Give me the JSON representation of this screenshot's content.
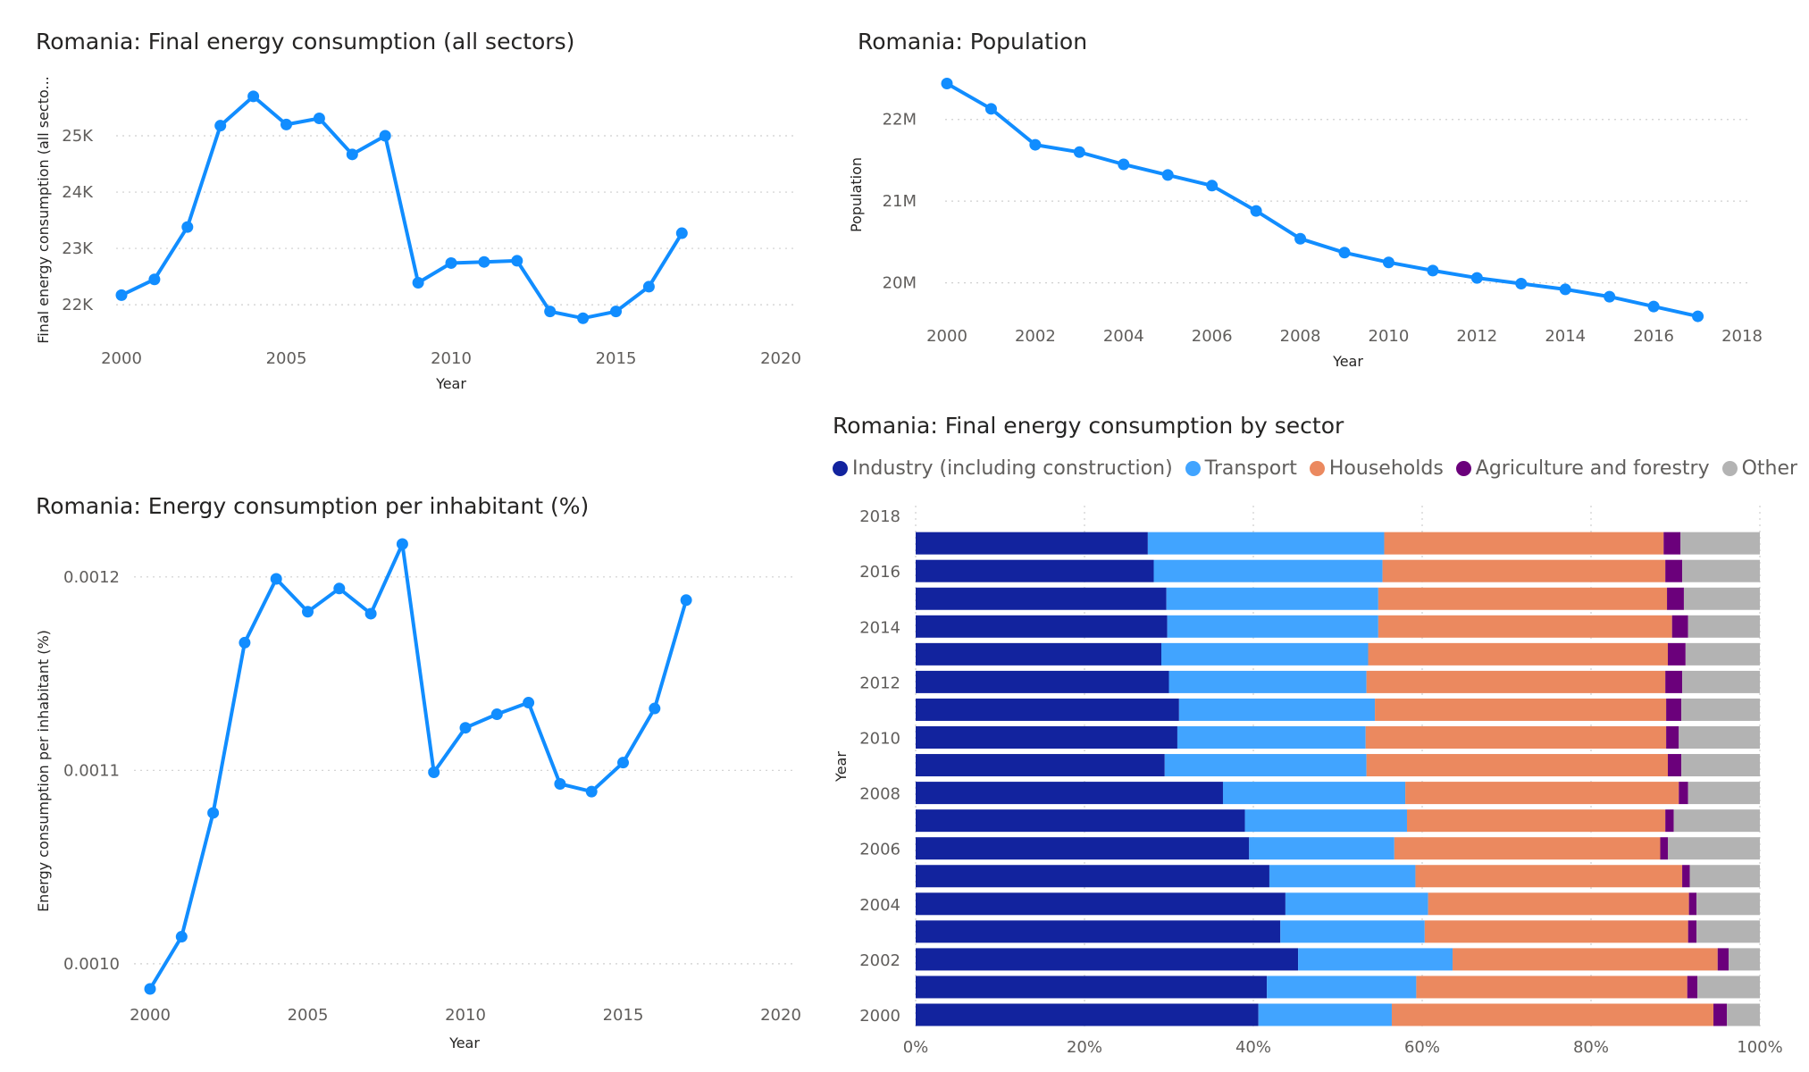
{
  "chart_data": [
    {
      "id": "chart1",
      "type": "line",
      "title": "Romania: Final energy consumption (all sectors)",
      "xlabel": "Year",
      "ylabel": "Final energy consumption (all secto...",
      "x": [
        2000,
        2001,
        2002,
        2003,
        2004,
        2005,
        2006,
        2007,
        2008,
        2009,
        2010,
        2011,
        2012,
        2013,
        2014,
        2015,
        2016,
        2017
      ],
      "values": [
        22170,
        22450,
        23380,
        25180,
        25700,
        25200,
        25310,
        24670,
        25000,
        22390,
        22740,
        22760,
        22780,
        21880,
        21760,
        21880,
        22320,
        23270
      ],
      "xlim": [
        2000,
        2020
      ],
      "xticks": [
        2000,
        2005,
        2010,
        2015,
        2020
      ],
      "ylim": [
        21700,
        26000
      ],
      "yticks": [
        22000,
        23000,
        24000,
        25000
      ],
      "ytick_labels": [
        "22K",
        "23K",
        "24K",
        "25K"
      ],
      "grid": true
    },
    {
      "id": "chart2",
      "type": "line",
      "title": "Romania: Population",
      "xlabel": "Year",
      "ylabel": "Population",
      "x": [
        2000,
        2001,
        2002,
        2003,
        2004,
        2005,
        2006,
        2007,
        2008,
        2009,
        2010,
        2011,
        2012,
        2013,
        2014,
        2015,
        2016,
        2017
      ],
      "values": [
        22440000,
        22130000,
        21690000,
        21600000,
        21450000,
        21320000,
        21190000,
        20880000,
        20540000,
        20370000,
        20250000,
        20150000,
        20060000,
        19990000,
        19920000,
        19830000,
        19710000,
        19590000
      ],
      "xlim": [
        2000,
        2018
      ],
      "xticks": [
        2000,
        2002,
        2004,
        2006,
        2008,
        2010,
        2012,
        2014,
        2016,
        2018
      ],
      "ylim": [
        19580000,
        22500000
      ],
      "yticks": [
        20000000,
        21000000,
        22000000
      ],
      "ytick_labels": [
        "20M",
        "21M",
        "22M"
      ],
      "grid": true
    },
    {
      "id": "chart3",
      "type": "line",
      "title": "Romania: Energy consumption per inhabitant (%)",
      "xlabel": "Year",
      "ylabel": "Energy consumption per inhabitant (%)",
      "x": [
        2000,
        2001,
        2002,
        2003,
        2004,
        2005,
        2006,
        2007,
        2008,
        2009,
        2010,
        2011,
        2012,
        2013,
        2014,
        2015,
        2016,
        2017
      ],
      "values": [
        0.000987,
        0.001014,
        0.001078,
        0.001166,
        0.001199,
        0.001182,
        0.001194,
        0.001181,
        0.001217,
        0.001099,
        0.001122,
        0.001129,
        0.001135,
        0.001093,
        0.001089,
        0.001104,
        0.001132,
        0.001188
      ],
      "xlim": [
        2000,
        2020
      ],
      "xticks": [
        2000,
        2005,
        2010,
        2015,
        2020
      ],
      "ylim": [
        0.000987,
        0.001217
      ],
      "yticks": [
        0.001,
        0.0011,
        0.0012
      ],
      "ytick_labels": [
        "0.0010",
        "0.0011",
        "0.0012"
      ],
      "grid": true
    },
    {
      "id": "chart4",
      "type": "bar",
      "orientation": "horizontal",
      "stacked": "100%",
      "title": "Romania: Final energy consumption by sector",
      "xlabel": "",
      "ylabel": "Year",
      "categories": [
        2000,
        2001,
        2002,
        2003,
        2004,
        2005,
        2006,
        2007,
        2008,
        2009,
        2010,
        2011,
        2012,
        2013,
        2014,
        2015,
        2016,
        2017
      ],
      "ytick_labels": [
        "2000",
        "2002",
        "2004",
        "2006",
        "2008",
        "2010",
        "2012",
        "2014",
        "2016",
        "2018"
      ],
      "xticks": [
        0,
        20,
        40,
        60,
        80,
        100
      ],
      "xtick_labels": [
        "0%",
        "20%",
        "40%",
        "60%",
        "80%",
        "100%"
      ],
      "legend_position": "top",
      "series": [
        {
          "name": "Industry (including construction)",
          "color": "#12239e",
          "values": [
            40.6,
            41.6,
            45.3,
            43.2,
            43.8,
            41.9,
            39.5,
            39.0,
            36.4,
            29.5,
            31.0,
            31.2,
            30.0,
            29.1,
            29.8,
            29.7,
            28.2,
            27.5
          ]
        },
        {
          "name": "Transport",
          "color": "#41a4ff",
          "values": [
            15.8,
            17.7,
            18.3,
            17.1,
            16.9,
            17.3,
            17.2,
            19.2,
            21.6,
            23.9,
            22.3,
            23.2,
            23.4,
            24.5,
            25.0,
            25.1,
            27.1,
            28.0
          ]
        },
        {
          "name": "Households",
          "color": "#eb895f",
          "values": [
            38.1,
            32.1,
            31.4,
            31.2,
            30.9,
            31.6,
            31.5,
            30.6,
            32.4,
            35.7,
            35.6,
            34.5,
            35.4,
            35.5,
            34.8,
            34.2,
            33.5,
            33.1
          ]
        },
        {
          "name": "Agriculture and forestry",
          "color": "#6b007b",
          "values": [
            1.6,
            1.2,
            1.3,
            1.0,
            0.9,
            0.9,
            0.9,
            1.0,
            1.1,
            1.6,
            1.5,
            1.8,
            2.0,
            2.1,
            1.9,
            2.0,
            2.0,
            2.0
          ]
        },
        {
          "name": "Other",
          "color": "#b3b3b3",
          "values": [
            3.9,
            7.4,
            3.7,
            7.5,
            7.5,
            8.3,
            10.9,
            10.2,
            8.5,
            9.3,
            9.6,
            9.3,
            9.2,
            8.8,
            8.5,
            9.0,
            9.2,
            9.4
          ]
        }
      ]
    }
  ]
}
